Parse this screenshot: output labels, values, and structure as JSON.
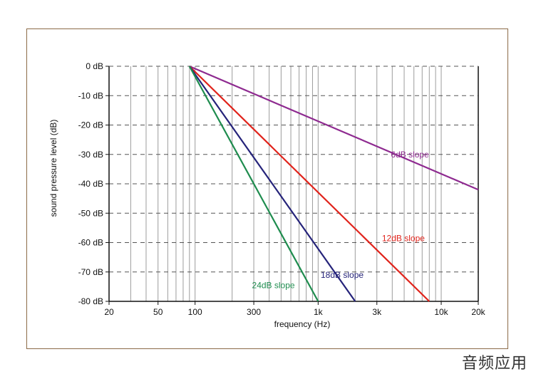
{
  "chart_data": {
    "type": "line",
    "title": "",
    "xlabel": "frequency (Hz)",
    "ylabel": "sound pressure level (dB)",
    "xscale": "log",
    "xlim": [
      20,
      20000
    ],
    "ylim": [
      -80,
      0
    ],
    "grid": true,
    "x_ticks": [
      20,
      50,
      100,
      300,
      1000,
      3000,
      10000,
      20000
    ],
    "x_tick_labels": [
      "20",
      "50",
      "100",
      "300",
      "1k",
      "3k",
      "10k",
      "20k"
    ],
    "y_ticks": [
      0,
      -10,
      -20,
      -30,
      -40,
      -50,
      -60,
      -70,
      -80
    ],
    "y_tick_labels": [
      "0 dB",
      "-10 dB",
      "-20 dB",
      "-30 dB",
      "-40 dB",
      "-50 dB",
      "-60 dB",
      "-70 dB",
      "-80 dB"
    ],
    "series": [
      {
        "name": "6dB slope",
        "color": "#8e2a90",
        "x": [
          90,
          20000
        ],
        "y": [
          0,
          -42
        ]
      },
      {
        "name": "12dB slope",
        "color": "#e0231b",
        "x": [
          90,
          8000
        ],
        "y": [
          0,
          -80
        ]
      },
      {
        "name": "18dB slope",
        "color": "#25237a",
        "x": [
          90,
          2000
        ],
        "y": [
          0,
          -80
        ]
      },
      {
        "name": "24dB slope",
        "color": "#1e8c4e",
        "x": [
          90,
          1000
        ],
        "y": [
          0,
          -80
        ]
      }
    ]
  },
  "watermark": "音频应用"
}
